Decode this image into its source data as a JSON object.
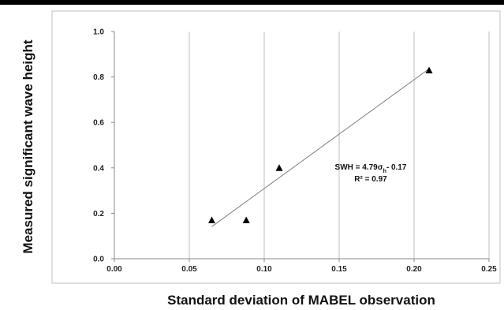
{
  "chart_data": {
    "type": "scatter",
    "xlabel": "Standard deviation of MABEL observation",
    "ylabel": "Measured significant wave height",
    "xlim": [
      0.0,
      0.25
    ],
    "ylim": [
      0.0,
      1.0
    ],
    "x_ticks": [
      "0.00",
      "0.05",
      "0.10",
      "0.15",
      "0.20",
      "0.25"
    ],
    "y_ticks": [
      "0.0",
      "0.2",
      "0.4",
      "0.6",
      "0.8",
      "1.0"
    ],
    "grid": "vertical",
    "marker": "triangle",
    "series": [
      {
        "points": [
          [
            0.065,
            0.17
          ],
          [
            0.088,
            0.17
          ],
          [
            0.11,
            0.4
          ],
          [
            0.21,
            0.83
          ]
        ]
      }
    ],
    "trendline": {
      "x_start": 0.065,
      "x_end": 0.21,
      "slope": 4.79,
      "intercept": -0.17
    },
    "annotation": {
      "equation_prefix": "SWH = 4.79σ",
      "equation_subscript": "h",
      "equation_suffix": "- 0.17",
      "r_squared": "R² = 0.97"
    },
    "colors": {
      "marker": "#000000",
      "trendline": "#7f7f7f",
      "grid": "#bfbfbf",
      "frame": "#bfbfbf"
    }
  }
}
